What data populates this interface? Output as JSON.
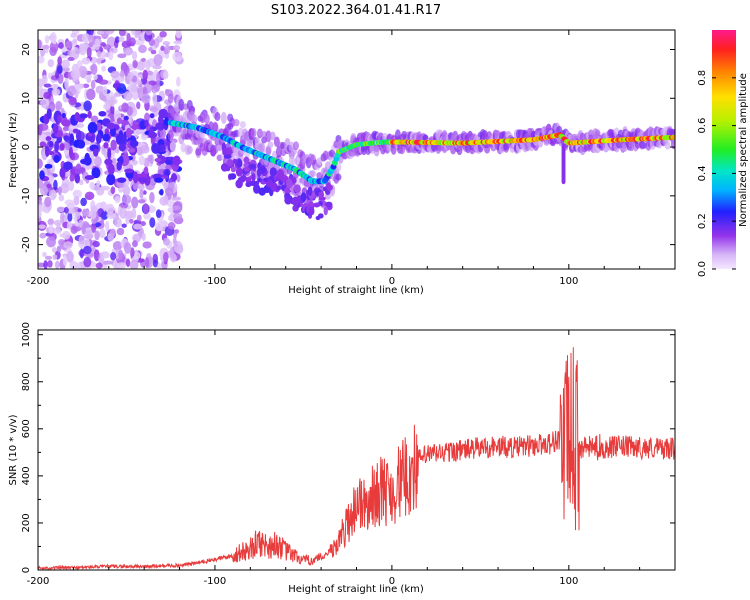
{
  "title": "S103.2022.364.01.41.R17",
  "chart_data": [
    {
      "type": "heatmap",
      "xlabel": "Height of straight line (km)",
      "ylabel": "Frequency (Hz)",
      "xlim": [
        -200,
        160
      ],
      "ylim": [
        -25,
        24
      ],
      "xticks": [
        -200,
        -100,
        0,
        100
      ],
      "yticks": [
        -20,
        -10,
        0,
        10,
        20
      ],
      "colorbar": {
        "label": "Normalized spectral amplitude",
        "range": [
          0,
          1
        ],
        "ticks": [
          0.0,
          0.2,
          0.4,
          0.6,
          0.8
        ]
      },
      "ridge": [
        {
          "x": -125,
          "y": 5
        },
        {
          "x": -110,
          "y": 4
        },
        {
          "x": -95,
          "y": 2
        },
        {
          "x": -85,
          "y": 0
        },
        {
          "x": -75,
          "y": -1.5
        },
        {
          "x": -65,
          "y": -3
        },
        {
          "x": -55,
          "y": -4.5
        },
        {
          "x": -45,
          "y": -7
        },
        {
          "x": -38,
          "y": -7
        },
        {
          "x": -33,
          "y": -4
        },
        {
          "x": -30,
          "y": -1
        },
        {
          "x": -20,
          "y": 0.5
        },
        {
          "x": -5,
          "y": 1
        },
        {
          "x": 10,
          "y": 1
        },
        {
          "x": 40,
          "y": 0.8
        },
        {
          "x": 80,
          "y": 1.5
        },
        {
          "x": 95,
          "y": 2.5
        },
        {
          "x": 100,
          "y": 0.8
        },
        {
          "x": 130,
          "y": 1.5
        },
        {
          "x": 160,
          "y": 2
        }
      ]
    },
    {
      "type": "line",
      "xlabel": "Height of straight line (km)",
      "ylabel": "SNR (10 * v/v)",
      "xlim": [
        -200,
        160
      ],
      "ylim": [
        0,
        1020
      ],
      "xticks": [
        -200,
        -100,
        0,
        100
      ],
      "yticks": [
        0,
        200,
        400,
        600,
        800,
        1000
      ],
      "color": "#e83c3c",
      "series": [
        {
          "x": [
            -200,
            -180,
            -160,
            -140,
            -120,
            -110,
            -100,
            -90,
            -80,
            -75,
            -70,
            -65,
            -60,
            -50,
            -40,
            -35,
            -30,
            -25,
            -20,
            -18,
            -15,
            -10,
            -5,
            0,
            5,
            10,
            15,
            20,
            30,
            40,
            50,
            60,
            70,
            80,
            90,
            95,
            98,
            100,
            102,
            104,
            110,
            115,
            120,
            130,
            140,
            150,
            160
          ],
          "y": [
            8,
            10,
            15,
            15,
            20,
            30,
            45,
            60,
            90,
            120,
            100,
            110,
            80,
            40,
            45,
            80,
            120,
            200,
            280,
            300,
            260,
            320,
            340,
            330,
            380,
            400,
            470,
            490,
            500,
            510,
            520,
            525,
            520,
            530,
            540,
            560,
            520,
            560,
            600,
            520,
            520,
            525,
            520,
            525,
            520,
            518,
            515
          ]
        }
      ]
    }
  ]
}
